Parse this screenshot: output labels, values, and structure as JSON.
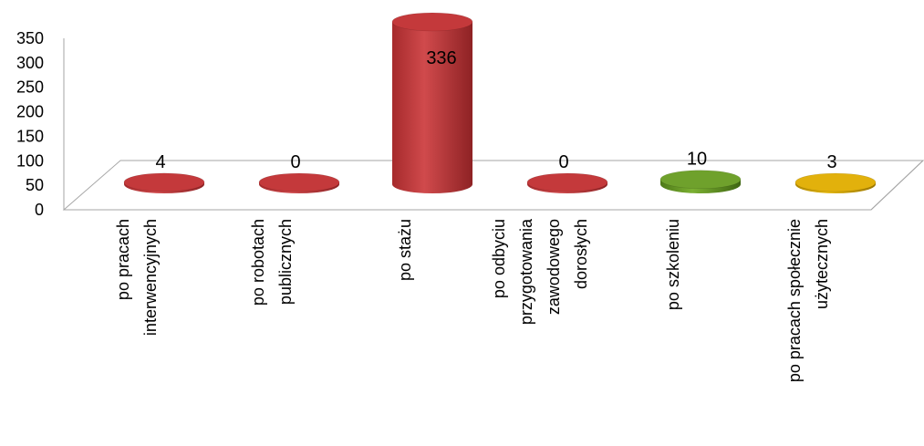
{
  "chart_data": {
    "type": "bar",
    "style": "3d-cylinder",
    "categories": [
      [
        "po pracach",
        "interwencyjnych"
      ],
      [
        "po robotach",
        "publicznych"
      ],
      [
        "po stażu"
      ],
      [
        "po odbyciu",
        "przygotowania",
        "zawodowego",
        "dorosłych"
      ],
      [
        "po szkoleniu"
      ],
      [
        "po pracach społecznie",
        "użytecznych"
      ]
    ],
    "values": [
      4,
      0,
      336,
      0,
      10,
      3
    ],
    "data_labels": [
      "4",
      "0",
      "336",
      "0",
      "10",
      "3"
    ],
    "colors": [
      "#c0393b",
      "#c0393b",
      "#c0393b",
      "#c0393b",
      "#6a9a2a",
      "#d8a808"
    ],
    "ylim": [
      0,
      350
    ],
    "y_ticks": [
      "0",
      "50",
      "100",
      "150",
      "200",
      "250",
      "300",
      "350"
    ],
    "grid": false,
    "legend": "none"
  }
}
